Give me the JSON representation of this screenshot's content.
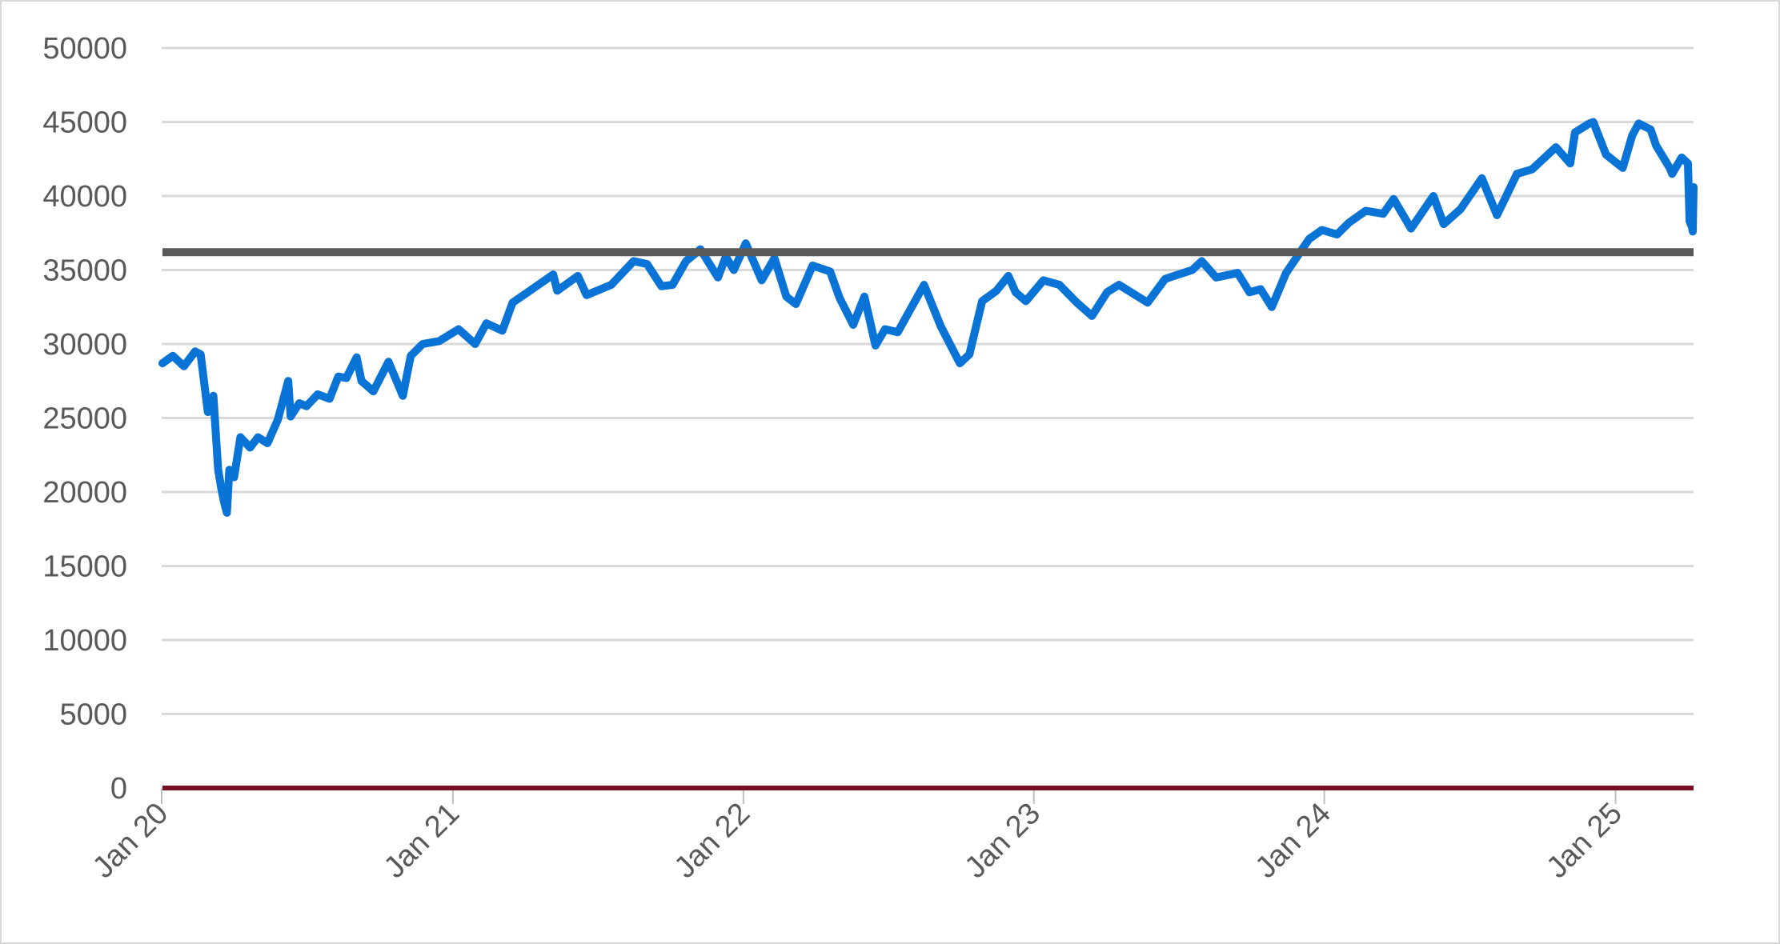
{
  "chart_data": {
    "type": "line",
    "title": "",
    "xlabel": "",
    "ylabel": "",
    "grid": true,
    "legend": "none",
    "xlim": [
      "2020-01",
      "2025-04"
    ],
    "ylim": [
      0,
      50000
    ],
    "y_ticks": [
      0,
      5000,
      10000,
      15000,
      20000,
      25000,
      30000,
      35000,
      40000,
      45000,
      50000
    ],
    "x_ticks": [
      {
        "date": "2020-01",
        "label": "Jan 20"
      },
      {
        "date": "2021-01",
        "label": "Jan 21"
      },
      {
        "date": "2022-01",
        "label": "Jan 22"
      },
      {
        "date": "2023-01",
        "label": "Jan 23"
      },
      {
        "date": "2024-01",
        "label": "Jan 24"
      },
      {
        "date": "2025-01",
        "label": "Jan 25"
      }
    ],
    "series": [
      {
        "color": "#0a74d6",
        "points": [
          [
            "2020-01-02",
            28700
          ],
          [
            "2020-01-15",
            29200
          ],
          [
            "2020-01-29",
            28500
          ],
          [
            "2020-02-12",
            29500
          ],
          [
            "2020-02-19",
            29300
          ],
          [
            "2020-02-28",
            25400
          ],
          [
            "2020-03-06",
            26500
          ],
          [
            "2020-03-12",
            21500
          ],
          [
            "2020-03-16",
            20200
          ],
          [
            "2020-03-20",
            19200
          ],
          [
            "2020-03-23",
            18600
          ],
          [
            "2020-03-26",
            21500
          ],
          [
            "2020-04-01",
            21000
          ],
          [
            "2020-04-09",
            23700
          ],
          [
            "2020-04-21",
            23000
          ],
          [
            "2020-05-01",
            23700
          ],
          [
            "2020-05-13",
            23300
          ],
          [
            "2020-05-26",
            24900
          ],
          [
            "2020-06-08",
            27500
          ],
          [
            "2020-06-11",
            25100
          ],
          [
            "2020-06-22",
            26000
          ],
          [
            "2020-07-01",
            25800
          ],
          [
            "2020-07-15",
            26600
          ],
          [
            "2020-07-30",
            26300
          ],
          [
            "2020-08-10",
            27800
          ],
          [
            "2020-08-20",
            27700
          ],
          [
            "2020-09-02",
            29100
          ],
          [
            "2020-09-08",
            27500
          ],
          [
            "2020-09-23",
            26800
          ],
          [
            "2020-10-12",
            28800
          ],
          [
            "2020-10-30",
            26500
          ],
          [
            "2020-11-09",
            29200
          ],
          [
            "2020-11-24",
            30000
          ],
          [
            "2020-12-15",
            30200
          ],
          [
            "2021-01-08",
            31000
          ],
          [
            "2021-01-29",
            30000
          ],
          [
            "2021-02-12",
            31400
          ],
          [
            "2021-03-04",
            30900
          ],
          [
            "2021-03-17",
            32800
          ],
          [
            "2021-04-05",
            33500
          ],
          [
            "2021-05-07",
            34700
          ],
          [
            "2021-05-12",
            33600
          ],
          [
            "2021-06-07",
            34600
          ],
          [
            "2021-06-18",
            33300
          ],
          [
            "2021-07-19",
            34000
          ],
          [
            "2021-08-16",
            35600
          ],
          [
            "2021-09-02",
            35400
          ],
          [
            "2021-09-20",
            33900
          ],
          [
            "2021-10-04",
            34000
          ],
          [
            "2021-10-21",
            35600
          ],
          [
            "2021-11-08",
            36400
          ],
          [
            "2021-11-30",
            34500
          ],
          [
            "2021-12-10",
            35900
          ],
          [
            "2021-12-20",
            35000
          ],
          [
            "2022-01-04",
            36800
          ],
          [
            "2022-01-24",
            34300
          ],
          [
            "2022-02-09",
            35800
          ],
          [
            "2022-02-24",
            33200
          ],
          [
            "2022-03-08",
            32700
          ],
          [
            "2022-03-29",
            35300
          ],
          [
            "2022-04-20",
            34900
          ],
          [
            "2022-05-02",
            33100
          ],
          [
            "2022-05-19",
            31300
          ],
          [
            "2022-06-02",
            33200
          ],
          [
            "2022-06-16",
            29900
          ],
          [
            "2022-06-28",
            31000
          ],
          [
            "2022-07-14",
            30800
          ],
          [
            "2022-08-16",
            34000
          ],
          [
            "2022-09-06",
            31200
          ],
          [
            "2022-09-30",
            28700
          ],
          [
            "2022-10-12",
            29300
          ],
          [
            "2022-10-28",
            32900
          ],
          [
            "2022-11-15",
            33600
          ],
          [
            "2022-11-30",
            34600
          ],
          [
            "2022-12-09",
            33500
          ],
          [
            "2022-12-22",
            32900
          ],
          [
            "2023-01-13",
            34300
          ],
          [
            "2023-02-02",
            34000
          ],
          [
            "2023-02-24",
            32800
          ],
          [
            "2023-03-15",
            31900
          ],
          [
            "2023-04-03",
            33500
          ],
          [
            "2023-04-18",
            34000
          ],
          [
            "2023-05-24",
            32800
          ],
          [
            "2023-06-15",
            34400
          ],
          [
            "2023-07-19",
            35000
          ],
          [
            "2023-07-31",
            35600
          ],
          [
            "2023-08-18",
            34500
          ],
          [
            "2023-09-14",
            34800
          ],
          [
            "2023-09-29",
            33500
          ],
          [
            "2023-10-13",
            33700
          ],
          [
            "2023-10-27",
            32500
          ],
          [
            "2023-11-14",
            34800
          ],
          [
            "2023-12-13",
            37100
          ],
          [
            "2023-12-29",
            37700
          ],
          [
            "2024-01-17",
            37400
          ],
          [
            "2024-02-01",
            38200
          ],
          [
            "2024-02-22",
            39000
          ],
          [
            "2024-03-15",
            38800
          ],
          [
            "2024-03-28",
            39800
          ],
          [
            "2024-04-19",
            37800
          ],
          [
            "2024-05-17",
            40000
          ],
          [
            "2024-05-30",
            38100
          ],
          [
            "2024-06-20",
            39100
          ],
          [
            "2024-07-17",
            41200
          ],
          [
            "2024-08-05",
            38700
          ],
          [
            "2024-08-30",
            41500
          ],
          [
            "2024-09-18",
            41800
          ],
          [
            "2024-10-18",
            43300
          ],
          [
            "2024-11-05",
            42200
          ],
          [
            "2024-11-11",
            44300
          ],
          [
            "2024-11-29",
            44900
          ],
          [
            "2024-12-04",
            45000
          ],
          [
            "2024-12-20",
            42800
          ],
          [
            "2025-01-10",
            41900
          ],
          [
            "2025-01-22",
            44100
          ],
          [
            "2025-01-30",
            44900
          ],
          [
            "2025-02-14",
            44500
          ],
          [
            "2025-02-21",
            43400
          ],
          [
            "2025-03-10",
            41900
          ],
          [
            "2025-03-13",
            41500
          ],
          [
            "2025-03-25",
            42600
          ],
          [
            "2025-04-02",
            42200
          ],
          [
            "2025-04-04",
            38300
          ],
          [
            "2025-04-07",
            37900
          ],
          [
            "2025-04-08",
            37600
          ],
          [
            "2025-04-09",
            40600
          ]
        ]
      },
      {
        "color": "#595959",
        "points": [
          [
            "2020-01-02",
            36200
          ],
          [
            "2025-04-09",
            36200
          ]
        ]
      },
      {
        "color": "#7a0f23",
        "points": [
          [
            "2020-01-02",
            0
          ],
          [
            "2025-04-09",
            0
          ]
        ]
      }
    ]
  }
}
